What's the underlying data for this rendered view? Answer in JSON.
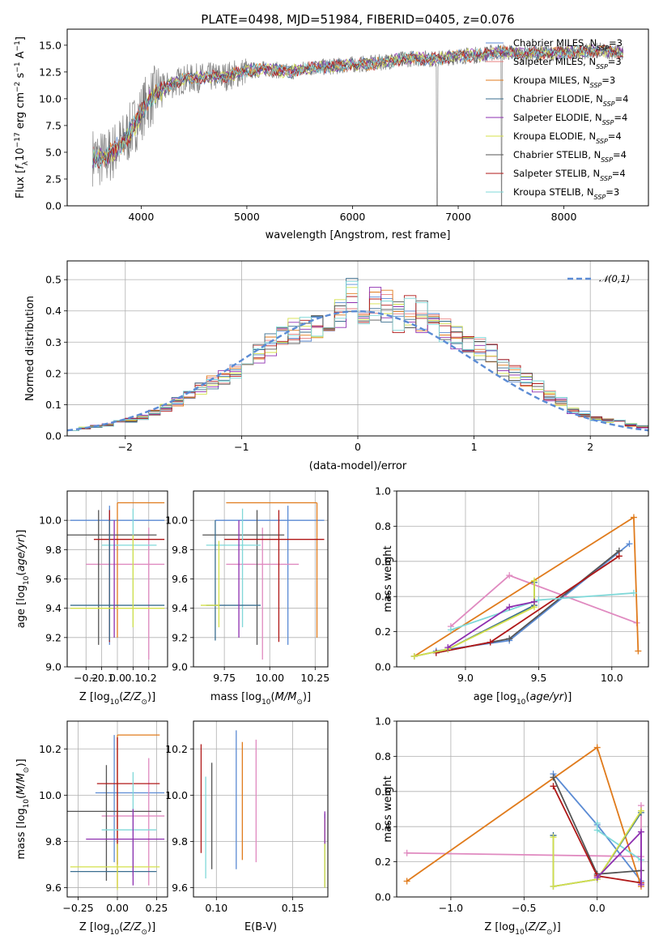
{
  "chart_data": [
    {
      "type": "line",
      "title": "PLATE=0498, MJD=51984, FIBERID=0405, z=0.076",
      "xlabel": "wavelength [Angstrom, rest frame]",
      "ylabel": "Flux [f_λ 10^-17 erg cm^-2 s^-1 A^-1]",
      "xlim": [
        3300,
        8800
      ],
      "ylim": [
        0,
        16.5
      ],
      "xticks": [
        4000,
        5000,
        6000,
        7000,
        8000
      ],
      "yticks": [
        0.0,
        2.5,
        5.0,
        7.5,
        10.0,
        12.5,
        15.0
      ],
      "observed_color": "#808080",
      "continuum_x": [
        3550,
        3650,
        3750,
        3850,
        3950,
        4050,
        4150,
        4250,
        4400,
        4600,
        4800,
        5000,
        5200,
        5400,
        5600,
        5800,
        6000,
        6200,
        6400,
        6600,
        6800,
        7000,
        7200,
        7400,
        7600,
        7800,
        8000,
        8200,
        8400,
        8550
      ],
      "continuum_y": [
        4.6,
        4.3,
        5.2,
        6.2,
        7.8,
        9.6,
        10.6,
        11.2,
        11.8,
        12.0,
        12.1,
        12.6,
        12.8,
        12.5,
        12.9,
        13.0,
        13.2,
        13.3,
        13.6,
        13.8,
        13.7,
        14.0,
        14.1,
        14.4,
        14.2,
        14.3,
        14.3,
        14.4,
        14.5,
        14.3
      ],
      "legend": [
        {
          "label": "Chabrier MILES, N",
          "sub": "SSP",
          "suffix": "=3",
          "color": "#5b8bd4"
        },
        {
          "label": "Salpeter MILES, N",
          "sub": "SSP",
          "suffix": "=3",
          "color": "#e87f7f"
        },
        {
          "label": "Kroupa MILES, N",
          "sub": "SSP",
          "suffix": "=3",
          "color": "#e07b1c"
        },
        {
          "label": "Chabrier ELODIE, N",
          "sub": "SSP",
          "suffix": "=4",
          "color": "#3a6e8f"
        },
        {
          "label": "Salpeter ELODIE, N",
          "sub": "SSP",
          "suffix": "=4",
          "color": "#8e2fb0"
        },
        {
          "label": "Kroupa ELODIE, N",
          "sub": "SSP",
          "suffix": "=4",
          "color": "#d4e04a"
        },
        {
          "label": "Chabrier STELIB, N",
          "sub": "SSP",
          "suffix": "=4",
          "color": "#555555"
        },
        {
          "label": "Salpeter STELIB, N",
          "sub": "SSP",
          "suffix": "=4",
          "color": "#b01818"
        },
        {
          "label": "Kroupa STELIB, N",
          "sub": "SSP",
          "suffix": "=3",
          "color": "#7fd8d8"
        }
      ],
      "legend_placement": "upper-right"
    },
    {
      "type": "histogram",
      "xlabel": "(data-model)/error",
      "ylabel": "Normed distribution",
      "xlim": [
        -2.5,
        2.5
      ],
      "ylim": [
        0,
        0.56
      ],
      "xticks": [
        -2,
        -1,
        0,
        1,
        2
      ],
      "yticks": [
        0.0,
        0.1,
        0.2,
        0.3,
        0.4,
        0.5
      ],
      "bin_edges_start": -2.5,
      "bin_width": 0.1,
      "hist_values": [
        0.02,
        0.025,
        0.03,
        0.035,
        0.045,
        0.05,
        0.06,
        0.075,
        0.09,
        0.11,
        0.13,
        0.15,
        0.17,
        0.19,
        0.21,
        0.235,
        0.26,
        0.29,
        0.32,
        0.335,
        0.35,
        0.36,
        0.375,
        0.39,
        0.45,
        0.4,
        0.43,
        0.41,
        0.38,
        0.4,
        0.38,
        0.36,
        0.34,
        0.32,
        0.3,
        0.28,
        0.26,
        0.22,
        0.2,
        0.18,
        0.16,
        0.13,
        0.11,
        0.08,
        0.07,
        0.055,
        0.05,
        0.045,
        0.035,
        0.03
      ],
      "grid": true,
      "legend": [
        {
          "label": "𝒩(0,1)",
          "color": "#5b8bd4"
        }
      ],
      "legend_placement": "upper-right"
    },
    {
      "type": "errorbar",
      "xlabel": "Z [log10(Z/Z⊙)]",
      "ylabel": "age  [log10(age/yr)]",
      "xlim": [
        -0.32,
        0.32
      ],
      "ylim": [
        9.0,
        10.2
      ],
      "xticks": [
        -0.2,
        -0.1,
        0.0,
        0.1,
        0.2
      ],
      "xtick_labels": [
        "",
        "−0.1",
        "0.0",
        "0.1",
        "0.2"
      ],
      "xtick_labels_full": [
        "−0.2",
        "−0.1",
        "0.0",
        "0.1",
        "0.2"
      ],
      "yticks": [
        9.0,
        9.2,
        9.4,
        9.6,
        9.8,
        10.0
      ],
      "points": [
        {
          "x": -0.05,
          "y": 10.0,
          "xerr": [
            0.25,
            0.35
          ],
          "yerr": [
            0.85,
            0.1
          ],
          "color": "#5b8bd4"
        },
        {
          "x": 0.2,
          "y": 9.7,
          "xerr": [
            0.4,
            0.1
          ],
          "yerr": [
            0.65,
            0.25
          ],
          "color": "#e08ac0"
        },
        {
          "x": 0.0,
          "y": 10.12,
          "xerr": [
            0.0,
            0.3
          ],
          "yerr": [
            0.92,
            0.0
          ],
          "color": "#e07b1c"
        },
        {
          "x": -0.12,
          "y": 9.9,
          "xerr": [
            0.25,
            0.37
          ],
          "yerr": [
            0.75,
            0.17
          ],
          "color": "#555555"
        },
        {
          "x": -0.05,
          "y": 9.87,
          "xerr": [
            0.1,
            0.35
          ],
          "yerr": [
            0.7,
            0.2
          ],
          "color": "#b01818"
        },
        {
          "x": 0.1,
          "y": 9.83,
          "xerr": [
            0.2,
            0.15
          ],
          "yerr": [
            0.56,
            0.25
          ],
          "color": "#7fd8d8"
        },
        {
          "x": -0.05,
          "y": 9.42,
          "xerr": [
            0.25,
            0.35
          ],
          "yerr": [
            0.24,
            0.58
          ],
          "color": "#3a6e8f"
        },
        {
          "x": 0.1,
          "y": 9.4,
          "xerr": [
            0.4,
            0.2
          ],
          "yerr": [
            0.13,
            0.5
          ],
          "color": "#d4e04a"
        },
        {
          "x": -0.02,
          "y": 9.6,
          "xerr": [
            0.0,
            0.0
          ],
          "yerr": [
            0.4,
            0.4
          ],
          "color": "#8e2fb0"
        }
      ]
    },
    {
      "type": "errorbar",
      "xlabel": "mass [log10(M/M⊙)]",
      "ylabel": "",
      "xlim": [
        9.58,
        10.32
      ],
      "ylim": [
        9.0,
        10.2
      ],
      "xticks": [
        9.75,
        10.0,
        10.25
      ],
      "xtick_labels": [
        "9.75",
        "10.00",
        "10.25"
      ],
      "yticks": [
        9.0,
        9.2,
        9.4,
        9.6,
        9.8,
        10.0
      ],
      "points": [
        {
          "x": 10.1,
          "y": 10.0,
          "xerr": [
            0.4,
            0.2
          ],
          "yerr": [
            0.85,
            0.1
          ],
          "color": "#5b8bd4"
        },
        {
          "x": 9.96,
          "y": 9.7,
          "xerr": [
            0.2,
            0.2
          ],
          "yerr": [
            0.65,
            0.25
          ],
          "color": "#e08ac0"
        },
        {
          "x": 10.26,
          "y": 10.12,
          "xerr": [
            0.5,
            0.0
          ],
          "yerr": [
            0.92,
            0.0
          ],
          "color": "#e07b1c"
        },
        {
          "x": 9.93,
          "y": 9.9,
          "xerr": [
            0.3,
            0.15
          ],
          "yerr": [
            0.75,
            0.17
          ],
          "color": "#555555"
        },
        {
          "x": 10.05,
          "y": 9.87,
          "xerr": [
            0.3,
            0.25
          ],
          "yerr": [
            0.7,
            0.2
          ],
          "color": "#b01818"
        },
        {
          "x": 9.85,
          "y": 9.83,
          "xerr": [
            0.2,
            0.1
          ],
          "yerr": [
            0.56,
            0.25
          ],
          "color": "#7fd8d8"
        },
        {
          "x": 9.7,
          "y": 9.42,
          "xerr": [
            0.05,
            0.25
          ],
          "yerr": [
            0.24,
            0.58
          ],
          "color": "#3a6e8f"
        },
        {
          "x": 9.72,
          "y": 9.42,
          "xerr": [
            0.1,
            0.0
          ],
          "yerr": [
            0.15,
            0.44
          ],
          "color": "#d4e04a"
        },
        {
          "x": 9.83,
          "y": 9.6,
          "xerr": [
            0.0,
            0.0
          ],
          "yerr": [
            0.4,
            0.4
          ],
          "color": "#8e2fb0"
        }
      ]
    },
    {
      "type": "line",
      "xlabel": "age  [log10(age/yr)]",
      "ylabel": "mass weight",
      "xlim": [
        8.53,
        10.25
      ],
      "ylim": [
        0,
        1.0
      ],
      "xticks": [
        9.0,
        9.5,
        10.0
      ],
      "yticks": [
        0.0,
        0.2,
        0.4,
        0.6,
        0.8,
        1.0
      ],
      "series": [
        {
          "color": "#5b8bd4",
          "x": [
            8.8,
            9.3,
            10.12
          ],
          "y": [
            0.09,
            0.15,
            0.7
          ]
        },
        {
          "color": "#e08ac0",
          "x": [
            8.9,
            9.3,
            10.17
          ],
          "y": [
            0.23,
            0.52,
            0.25
          ]
        },
        {
          "color": "#e07b1c",
          "x": [
            8.65,
            10.15,
            10.18
          ],
          "y": [
            0.06,
            0.85,
            0.09
          ]
        },
        {
          "color": "#555555",
          "x": [
            8.8,
            9.3,
            10.05
          ],
          "y": [
            0.08,
            0.16,
            0.66
          ]
        },
        {
          "color": "#b01818",
          "x": [
            8.8,
            9.17,
            10.05
          ],
          "y": [
            0.08,
            0.14,
            0.63
          ]
        },
        {
          "color": "#7fd8d8",
          "x": [
            8.9,
            9.5,
            10.15
          ],
          "y": [
            0.21,
            0.38,
            0.42
          ]
        },
        {
          "color": "#3a6e8f",
          "x": [
            8.65,
            8.88,
            9.47,
            9.47
          ],
          "y": [
            0.06,
            0.1,
            0.35,
            0.48
          ]
        },
        {
          "color": "#d4e04a",
          "x": [
            8.65,
            8.88,
            9.47,
            9.47
          ],
          "y": [
            0.06,
            0.1,
            0.34,
            0.49
          ]
        },
        {
          "color": "#8e2fb0",
          "x": [
            8.88,
            9.3,
            9.47
          ],
          "y": [
            0.11,
            0.34,
            0.37
          ]
        }
      ]
    },
    {
      "type": "errorbar",
      "xlabel": "Z [log10(Z/Z⊙)]",
      "ylabel": "mass [log10(M/M⊙)]",
      "xlim": [
        -0.32,
        0.32
      ],
      "ylim": [
        9.56,
        10.32
      ],
      "xticks": [
        -0.25,
        0.0,
        0.25
      ],
      "xtick_labels": [
        "−0.25",
        "0.00",
        "0.25"
      ],
      "yticks": [
        9.6,
        9.8,
        10.0,
        10.2
      ],
      "points": [
        {
          "x": -0.02,
          "y": 10.01,
          "xerr": [
            0.12,
            0.32
          ],
          "yerr": [
            0.3,
            0.25
          ],
          "color": "#5b8bd4"
        },
        {
          "x": 0.2,
          "y": 9.91,
          "xerr": [
            0.3,
            0.1
          ],
          "yerr": [
            0.3,
            0.25
          ],
          "color": "#e08ac0"
        },
        {
          "x": 0.0,
          "y": 10.26,
          "xerr": [
            0.0,
            0.27
          ],
          "yerr": [
            0.66,
            0.0
          ],
          "color": "#e07b1c"
        },
        {
          "x": -0.07,
          "y": 9.93,
          "xerr": [
            0.25,
            0.35
          ],
          "yerr": [
            0.3,
            0.2
          ],
          "color": "#555555"
        },
        {
          "x": 0.0,
          "y": 10.05,
          "xerr": [
            0.13,
            0.27
          ],
          "yerr": [
            0.35,
            0.2
          ],
          "color": "#b01818"
        },
        {
          "x": 0.1,
          "y": 9.85,
          "xerr": [
            0.2,
            0.15
          ],
          "yerr": [
            0.2,
            0.25
          ],
          "color": "#7fd8d8"
        },
        {
          "x": -0.05,
          "y": 9.67,
          "xerr": [
            0.25,
            0.3
          ],
          "yerr": [
            0.0,
            0.0
          ],
          "color": "#3a6e8f"
        },
        {
          "x": 0.0,
          "y": 9.69,
          "xerr": [
            0.3,
            0.27
          ],
          "yerr": [
            0.1,
            0.1
          ],
          "color": "#d4e04a"
        },
        {
          "x": 0.1,
          "y": 9.81,
          "xerr": [
            0.3,
            0.2
          ],
          "yerr": [
            0.2,
            0.13
          ],
          "color": "#8e2fb0"
        }
      ]
    },
    {
      "type": "errorbar",
      "xlabel": "E(B-V)",
      "ylabel": "",
      "xlim": [
        0.085,
        0.173
      ],
      "ylim": [
        9.56,
        10.32
      ],
      "xticks": [
        0.1,
        0.15
      ],
      "xtick_labels": [
        "0.10",
        "0.15"
      ],
      "yticks": [
        9.6,
        9.8,
        10.0,
        10.2
      ],
      "points": [
        {
          "x": 0.113,
          "y": 9.98,
          "xerr": [
            0,
            0
          ],
          "yerr": [
            0.3,
            0.3
          ],
          "color": "#5b8bd4"
        },
        {
          "x": 0.126,
          "y": 9.98,
          "xerr": [
            0,
            0
          ],
          "yerr": [
            0.27,
            0.26
          ],
          "color": "#e08ac0"
        },
        {
          "x": 0.117,
          "y": 9.98,
          "xerr": [
            0,
            0
          ],
          "yerr": [
            0.26,
            0.25
          ],
          "color": "#e07b1c"
        },
        {
          "x": 0.097,
          "y": 9.98,
          "xerr": [
            0,
            0
          ],
          "yerr": [
            0.3,
            0.16
          ],
          "color": "#555555"
        },
        {
          "x": 0.09,
          "y": 9.98,
          "xerr": [
            0,
            0
          ],
          "yerr": [
            0.23,
            0.24
          ],
          "color": "#b01818"
        },
        {
          "x": 0.093,
          "y": 9.98,
          "xerr": [
            0,
            0
          ],
          "yerr": [
            0.34,
            0.1
          ],
          "color": "#7fd8d8"
        },
        {
          "x": 0.171,
          "y": 9.78,
          "xerr": [
            0,
            0
          ],
          "yerr": [
            0.18,
            0.14
          ],
          "color": "#3a6e8f"
        },
        {
          "x": 0.171,
          "y": 9.76,
          "xerr": [
            0,
            0
          ],
          "yerr": [
            0.16,
            0.14
          ],
          "color": "#d4e04a"
        },
        {
          "x": 0.171,
          "y": 9.85,
          "xerr": [
            0,
            0
          ],
          "yerr": [
            0.06,
            0.08
          ],
          "color": "#8e2fb0"
        }
      ]
    },
    {
      "type": "line",
      "xlabel": "Z [log10(Z/Z⊙)]",
      "ylabel": "mass weight",
      "xlim": [
        -1.37,
        0.35
      ],
      "ylim": [
        0,
        1.0
      ],
      "xticks": [
        -1.0,
        -0.5,
        0.0
      ],
      "yticks": [
        0.0,
        0.2,
        0.4,
        0.6,
        0.8,
        1.0
      ],
      "series": [
        {
          "color": "#5b8bd4",
          "x": [
            -0.3,
            0.0,
            0.3
          ],
          "y": [
            0.7,
            0.41,
            0.09
          ]
        },
        {
          "color": "#e08ac0",
          "x": [
            -1.3,
            0.3,
            0.3
          ],
          "y": [
            0.25,
            0.23,
            0.52
          ]
        },
        {
          "color": "#e07b1c",
          "x": [
            -1.3,
            0.0,
            0.3
          ],
          "y": [
            0.09,
            0.85,
            0.06
          ]
        },
        {
          "color": "#555555",
          "x": [
            -0.3,
            0.0,
            0.3
          ],
          "y": [
            0.68,
            0.13,
            0.15
          ]
        },
        {
          "color": "#b01818",
          "x": [
            -0.3,
            0.0,
            0.3
          ],
          "y": [
            0.63,
            0.12,
            0.08
          ]
        },
        {
          "color": "#7fd8d8",
          "x": [
            0.0,
            0.0,
            0.3
          ],
          "y": [
            0.42,
            0.38,
            0.21
          ]
        },
        {
          "color": "#3a6e8f",
          "x": [
            -0.3,
            -0.3,
            0.0,
            0.3
          ],
          "y": [
            0.35,
            0.06,
            0.1,
            0.48
          ]
        },
        {
          "color": "#d4e04a",
          "x": [
            -0.3,
            -0.3,
            0.0,
            0.3
          ],
          "y": [
            0.34,
            0.06,
            0.1,
            0.49
          ]
        },
        {
          "color": "#8e2fb0",
          "x": [
            0.0,
            0.3,
            0.3
          ],
          "y": [
            0.11,
            0.37,
            0.07
          ]
        }
      ]
    }
  ]
}
